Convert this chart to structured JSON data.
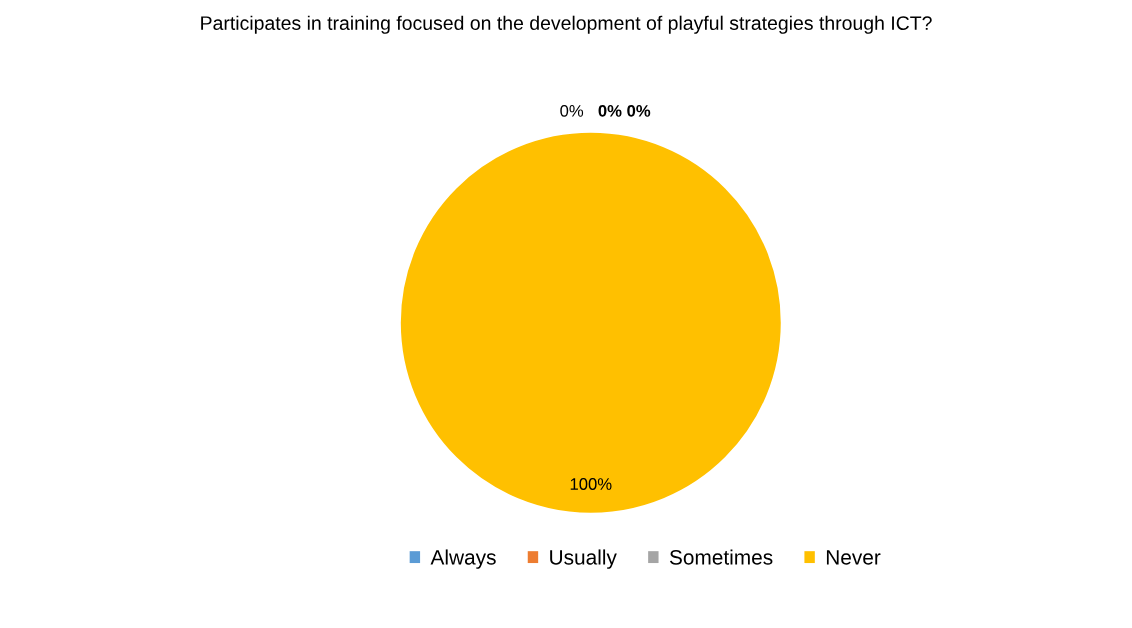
{
  "chart_data": {
    "type": "pie",
    "title": "Participates in training focused on the development of playful strategies through ICT?",
    "categories": [
      "Always",
      "Usually",
      "Sometimes",
      "Never"
    ],
    "values": [
      0,
      0,
      0,
      100
    ],
    "colors": [
      "#5b9bd5",
      "#ed7d31",
      "#a5a5a5",
      "#ffc000"
    ],
    "value_labels": [
      "0%",
      "0%",
      "0%",
      "100%"
    ],
    "legend": "bottom"
  }
}
